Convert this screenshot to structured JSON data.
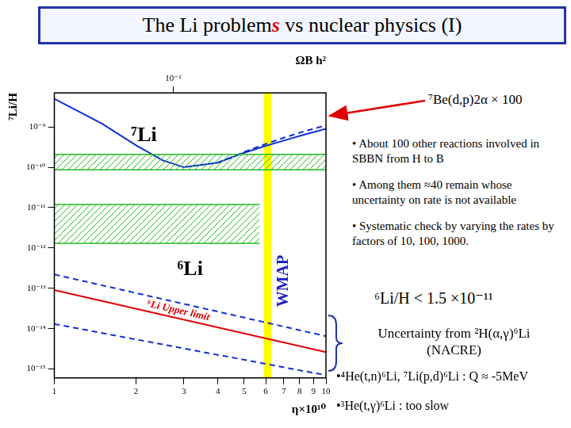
{
  "slide": {
    "title_parts": [
      "The Li problem",
      "s",
      " vs nuclear physics (I)"
    ],
    "arrow_note": "⁷Be(d,p)2α × 100",
    "bullets": [
      "• About 100 other reactions involved in SBBN from H to B",
      "• Among them ≈40 remain whose uncertainty on rate is not available",
      "• Systematic check by varying the rates by factors of 10, 100, 1000."
    ],
    "limit": "⁶Li/H < 1.5 ×10⁻¹¹",
    "uncertainty": [
      "Uncertainty from ²H(α,γ)⁶Li",
      "(NACRE)"
    ],
    "footnotes": [
      "•⁴He(t,n)⁶Li, ⁷Li(p,d)⁶Li : Q ≈ -5MeV",
      "•³He(t,γ)⁶Li : too slow"
    ]
  },
  "chart_data": {
    "type": "line",
    "log": true,
    "grid": false,
    "x_label": "η×10¹⁰",
    "y_label": "⁷Li/H",
    "xlim": [
      1,
      10
    ],
    "xticks": [
      1,
      2,
      3,
      4,
      5,
      6,
      7,
      8,
      9,
      10
    ],
    "ylim": [
      6e-16,
      7e-09
    ],
    "yticks": [
      {
        "value": 1e-15,
        "label": "10⁻¹⁵"
      },
      {
        "value": 1e-14,
        "label": "10⁻¹⁴"
      },
      {
        "value": 1e-13,
        "label": "10⁻¹³"
      },
      {
        "value": 1e-12,
        "label": "10⁻¹²"
      },
      {
        "value": 1e-11,
        "label": "10⁻¹¹"
      },
      {
        "value": 1e-10,
        "label": "10⁻¹⁰"
      },
      {
        "value": 1e-09,
        "label": "10⁻⁹"
      }
    ],
    "top_axis": {
      "label": "ΩB h²",
      "xlim": [
        0.00365,
        0.0365
      ],
      "xticks": [
        {
          "value": 0.01,
          "label": "10⁻²"
        }
      ]
    },
    "wmap": {
      "label": "WMAP",
      "xmin": 5.9,
      "xmax": 6.3,
      "color": "#ffff00"
    },
    "bands": [
      {
        "ymin": 8.7e-11,
        "ymax": 2.1e-10,
        "xlim": [
          1,
          10
        ],
        "color": "#22bb22"
      },
      {
        "ymin": 1.3e-12,
        "ymax": 1.2e-11,
        "xlim": [
          1,
          5.7
        ],
        "color": "#22bb22"
      }
    ],
    "series": [
      {
        "color": "#1030d0",
        "line_style": "solid",
        "marker": "none",
        "x": [
          1,
          1.5,
          2,
          2.5,
          3,
          4,
          5,
          6,
          7,
          8,
          10
        ],
        "values": [
          5e-09,
          1.2e-09,
          3.5e-10,
          1.5e-10,
          1e-10,
          1.3e-10,
          2.3e-10,
          3.4e-10,
          4.6e-10,
          6e-10,
          9e-10
        ]
      },
      {
        "color": "#1030d0",
        "line_style": "dashed",
        "marker": "none",
        "x": [
          4,
          5,
          6,
          7,
          8,
          10
        ],
        "values": [
          1.3e-10,
          2.4e-10,
          3.8e-10,
          5.4e-10,
          7.2e-10,
          1.1e-09
        ]
      },
      {
        "color": "#1030d0",
        "line_style": "dashed",
        "marker": "none",
        "x": [
          1,
          10
        ],
        "values": [
          2.2e-13,
          6.5e-15
        ]
      },
      {
        "color": "#e00000",
        "line_style": "solid",
        "marker": "none",
        "x": [
          1,
          10
        ],
        "values": [
          9e-14,
          2.6e-15
        ]
      },
      {
        "color": "#1030d0",
        "line_style": "dashed",
        "marker": "none",
        "x": [
          1,
          10
        ],
        "values": [
          1.3e-14,
          7e-16
        ]
      }
    ],
    "annotations": [
      {
        "text": "⁷Li",
        "color": "#000000"
      },
      {
        "text": "⁶Li",
        "color": "#000000"
      },
      {
        "text": "⁶Li Upper limit",
        "color": "#e00000"
      }
    ]
  }
}
